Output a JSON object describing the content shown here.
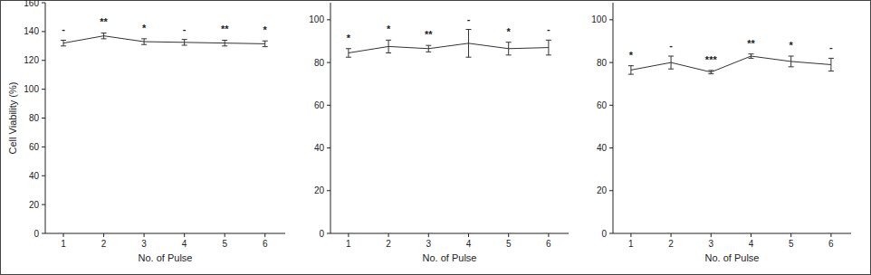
{
  "chart_data": [
    {
      "type": "line",
      "y_label": "Cell Viability (%)",
      "x_label": "No. of Pulse",
      "x": [
        1,
        2,
        3,
        4,
        5,
        6
      ],
      "values": [
        132,
        137,
        133,
        132.5,
        132,
        131.5
      ],
      "errors": [
        2,
        2,
        2,
        2,
        2,
        2
      ],
      "annotations": [
        "-",
        "**",
        "*",
        "-",
        "**",
        "*"
      ],
      "color": "#333333",
      "xlim": [
        0.55,
        6.5
      ],
      "xticks": [
        1,
        2,
        3,
        4,
        5,
        6
      ],
      "ylim": [
        0,
        160
      ],
      "yticks": [
        0,
        20,
        40,
        60,
        80,
        100,
        120,
        140,
        160
      ]
    },
    {
      "type": "line",
      "x_label": "No. of Pulse",
      "x": [
        1,
        2,
        3,
        4,
        5,
        6
      ],
      "values": [
        84.5,
        87.5,
        86.5,
        89,
        86.5,
        87
      ],
      "errors": [
        2,
        3,
        1.5,
        6.5,
        3,
        3.5
      ],
      "annotations": [
        "*",
        "*",
        "**",
        "-",
        "*",
        "-"
      ],
      "color": "#333333",
      "xlim": [
        0.55,
        6.5
      ],
      "xticks": [
        1,
        2,
        3,
        4,
        5,
        6
      ],
      "ylim": [
        0,
        108
      ],
      "yticks": [
        0,
        20,
        40,
        60,
        80,
        100
      ]
    },
    {
      "type": "line",
      "x_label": "No. of Pulse",
      "x": [
        1,
        2,
        3,
        4,
        5,
        6
      ],
      "values": [
        76.5,
        80,
        75.5,
        83,
        80.5,
        79
      ],
      "errors": [
        2,
        3,
        0.8,
        1,
        2.5,
        3
      ],
      "annotations": [
        "*",
        "-",
        "***",
        "**",
        "*",
        "-"
      ],
      "color": "#333333",
      "xlim": [
        0.55,
        6.5
      ],
      "xticks": [
        1,
        2,
        3,
        4,
        5,
        6
      ],
      "ylim": [
        0,
        108
      ],
      "yticks": [
        0,
        20,
        40,
        60,
        80,
        100
      ]
    }
  ]
}
